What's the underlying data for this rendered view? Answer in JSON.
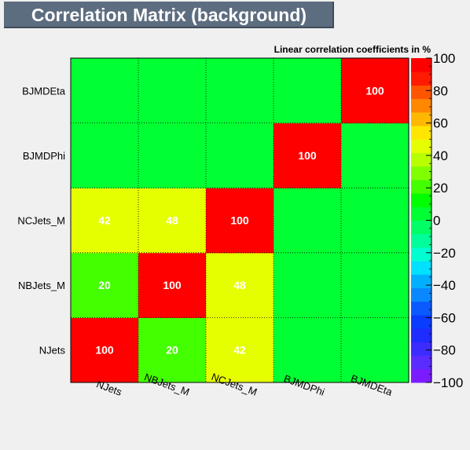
{
  "title": "Correlation Matrix (background)",
  "chart_data": {
    "type": "heatmap",
    "title": "Correlation Matrix (background)",
    "subtitle": "Linear correlation coefficients in %",
    "variables": [
      "NJets",
      "NBJets_M",
      "NCJets_M",
      "BJMDPhi",
      "BJMDEta"
    ],
    "matrix": [
      [
        100,
        20,
        42,
        0,
        0
      ],
      [
        20,
        100,
        48,
        0,
        0
      ],
      [
        42,
        48,
        100,
        0,
        0
      ],
      [
        0,
        0,
        0,
        100,
        0
      ],
      [
        0,
        0,
        0,
        0,
        100
      ]
    ],
    "zlim": [
      -100,
      100
    ],
    "colorbar_ticks": [
      100,
      80,
      60,
      40,
      20,
      0,
      -20,
      -40,
      -60,
      -80,
      -100
    ],
    "grid": true,
    "legend": "right"
  }
}
